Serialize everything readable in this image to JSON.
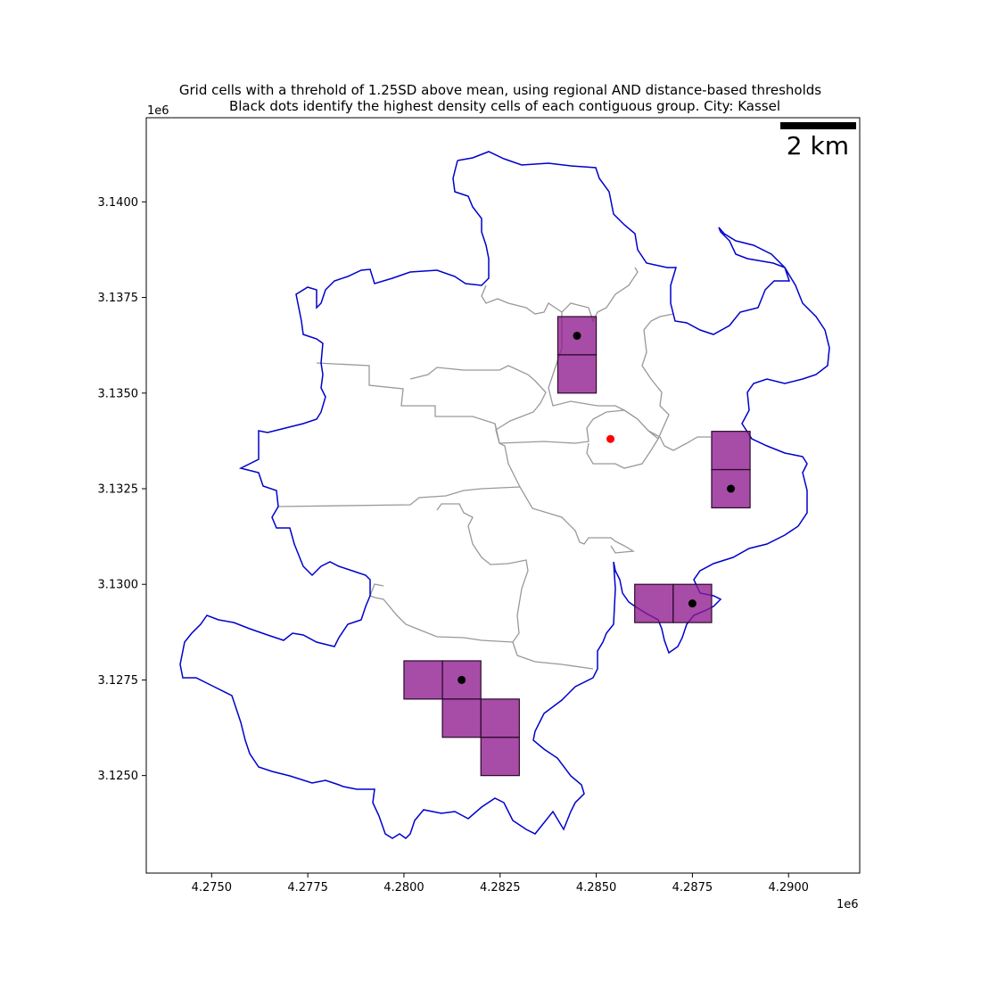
{
  "title_line1": "Grid cells with a threhold of 1.25SD above mean, using regional AND distance-based thresholds",
  "title_line2": "Black dots identify the highest density cells of each contiguous group. City: Kassel",
  "scale_bar_label": "2 km",
  "x_offset_label": "1e6",
  "y_offset_label": "1e6",
  "colors": {
    "boundary": "#0000cc",
    "districts": "#999999",
    "cells_fill": "#8e1a8e",
    "cells_edge": "#2a0a2a",
    "peak_dot": "#000000",
    "center_dot": "#ff0000"
  },
  "chart_data": {
    "type": "map",
    "xlim": [
      4.2733,
      4.29185
    ],
    "ylim": [
      3.12245,
      3.1422
    ],
    "x_ticks": [
      "4.2750",
      "4.2775",
      "4.2800",
      "4.2825",
      "4.2850",
      "4.2875",
      "4.2900"
    ],
    "y_ticks": [
      "3.1250",
      "3.1275",
      "3.1300",
      "3.1325",
      "3.1350",
      "3.1375",
      "3.1400"
    ],
    "cell_size": 0.001,
    "cells": [
      [
        4.284,
        3.136
      ],
      [
        4.284,
        3.135
      ],
      [
        4.288,
        3.133
      ],
      [
        4.288,
        3.132
      ],
      [
        4.286,
        3.129
      ],
      [
        4.287,
        3.129
      ],
      [
        4.28,
        3.127
      ],
      [
        4.281,
        3.127
      ],
      [
        4.281,
        3.126
      ],
      [
        4.282,
        3.126
      ],
      [
        4.282,
        3.125
      ]
    ],
    "peak_cells": [
      [
        4.2845,
        3.1365
      ],
      [
        4.2885,
        3.1325
      ],
      [
        4.2875,
        3.1295
      ],
      [
        4.2815,
        3.1275
      ]
    ],
    "center_point": [
      4.28537,
      3.1338
    ]
  }
}
